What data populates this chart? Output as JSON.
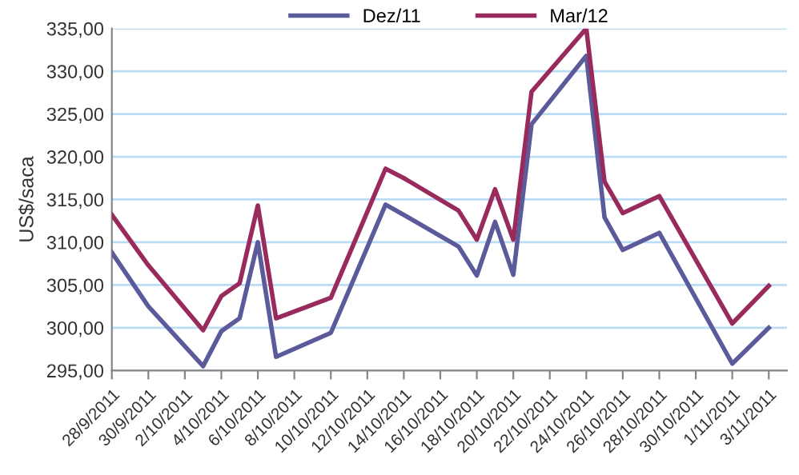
{
  "chart_data": {
    "type": "line",
    "ylabel": "US$/saca",
    "legend": "top",
    "grid": "y",
    "marker": "none",
    "line_style": "solid",
    "xlim": [
      "2011-09-28",
      "2011-11-04"
    ],
    "ylim": [
      295,
      335
    ],
    "yticks": [
      {
        "value": 295,
        "label": "295,00"
      },
      {
        "value": 300,
        "label": "300,00"
      },
      {
        "value": 305,
        "label": "305,00"
      },
      {
        "value": 310,
        "label": "310,00"
      },
      {
        "value": 315,
        "label": "315,00"
      },
      {
        "value": 320,
        "label": "320,00"
      },
      {
        "value": 325,
        "label": "325,00"
      },
      {
        "value": 330,
        "label": "330,00"
      },
      {
        "value": 335,
        "label": "335,00"
      }
    ],
    "xticks": [
      {
        "value": "2011-09-28",
        "label": "28/9/2011"
      },
      {
        "value": "2011-09-30",
        "label": "30/9/2011"
      },
      {
        "value": "2011-10-02",
        "label": "2/10/2011"
      },
      {
        "value": "2011-10-04",
        "label": "4/10/2011"
      },
      {
        "value": "2011-10-06",
        "label": "6/10/2011"
      },
      {
        "value": "2011-10-08",
        "label": "8/10/2011"
      },
      {
        "value": "2011-10-10",
        "label": "10/10/2011"
      },
      {
        "value": "2011-10-12",
        "label": "12/10/2011"
      },
      {
        "value": "2011-10-14",
        "label": "14/10/2011"
      },
      {
        "value": "2011-10-16",
        "label": "16/10/2011"
      },
      {
        "value": "2011-10-18",
        "label": "18/10/2011"
      },
      {
        "value": "2011-10-20",
        "label": "20/10/2011"
      },
      {
        "value": "2011-10-22",
        "label": "22/10/2011"
      },
      {
        "value": "2011-10-24",
        "label": "24/10/2011"
      },
      {
        "value": "2011-10-26",
        "label": "26/10/2011"
      },
      {
        "value": "2011-10-28",
        "label": "28/10/2011"
      },
      {
        "value": "2011-10-30",
        "label": "30/10/2011"
      },
      {
        "value": "2011-11-01",
        "label": "1/11/2011"
      },
      {
        "value": "2011-11-03",
        "label": "3/11/2011"
      }
    ],
    "x": [
      "2011-09-28",
      "2011-09-30",
      "2011-10-03",
      "2011-10-04",
      "2011-10-05",
      "2011-10-06",
      "2011-10-07",
      "2011-10-10",
      "2011-10-13",
      "2011-10-14",
      "2011-10-17",
      "2011-10-18",
      "2011-10-19",
      "2011-10-20",
      "2011-10-21",
      "2011-10-24",
      "2011-10-25",
      "2011-10-26",
      "2011-10-28",
      "2011-11-01",
      "2011-11-03"
    ],
    "series": [
      {
        "name": "Dez/11",
        "color": "#5b5a9a",
        "values": [
          308.8,
          302.5,
          295.5,
          299.6,
          301.1,
          310.0,
          296.6,
          299.4,
          314.4,
          313.2,
          309.5,
          306.1,
          312.4,
          306.2,
          323.8,
          331.8,
          312.9,
          309.1,
          311.1,
          295.8,
          300.0
        ]
      },
      {
        "name": "Mar/12",
        "color": "#992a5c",
        "values": [
          313.2,
          307.3,
          299.7,
          303.7,
          305.2,
          314.3,
          301.1,
          303.5,
          318.6,
          317.5,
          313.7,
          310.3,
          316.2,
          310.3,
          327.6,
          335.0,
          317.1,
          313.4,
          315.4,
          300.5,
          304.9
        ]
      }
    ]
  }
}
